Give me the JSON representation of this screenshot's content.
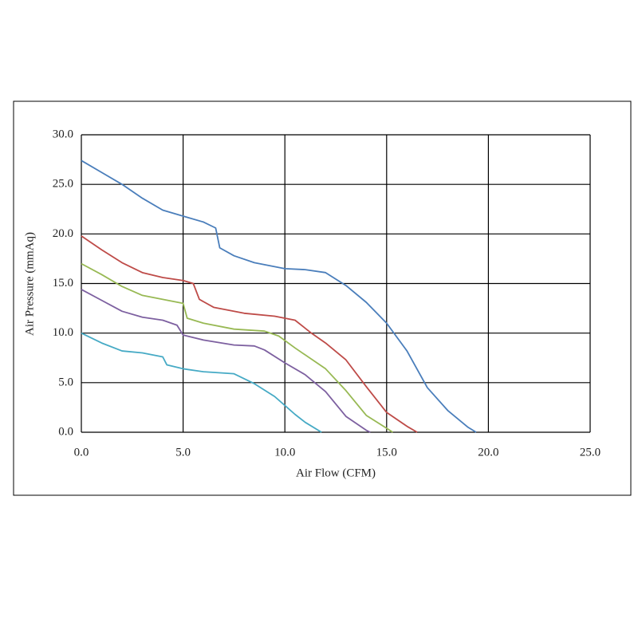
{
  "chart_data": {
    "type": "line",
    "x_label": "Air Flow (CFM)",
    "y_label": "Air Pressure (mmAq)",
    "xlim": [
      0,
      25
    ],
    "ylim": [
      0,
      30
    ],
    "xticks": [
      {
        "value": 0,
        "label": "0.0"
      },
      {
        "value": 5,
        "label": "5.0"
      },
      {
        "value": 10,
        "label": "10.0"
      },
      {
        "value": 15,
        "label": "15.0"
      },
      {
        "value": 20,
        "label": "20.0"
      },
      {
        "value": 25,
        "label": "25.0"
      }
    ],
    "yticks": [
      {
        "value": 0,
        "label": "0.0"
      },
      {
        "value": 5,
        "label": "5.0"
      },
      {
        "value": 10,
        "label": "10.0"
      },
      {
        "value": 15,
        "label": "15.0"
      },
      {
        "value": 20,
        "label": "20.0"
      },
      {
        "value": 25,
        "label": "25.0"
      },
      {
        "value": 30,
        "label": "30.0"
      }
    ],
    "grid": true,
    "series": [
      {
        "color": "#4a7ebb",
        "x": [
          0,
          1,
          2,
          3,
          4,
          5,
          6,
          6.6,
          6.8,
          7.5,
          8.5,
          10,
          11,
          12,
          13,
          14,
          15,
          16,
          17,
          18,
          19,
          19.4
        ],
        "values": [
          27.4,
          26.2,
          25,
          23.6,
          22.4,
          21.8,
          21.2,
          20.6,
          18.6,
          17.8,
          17.1,
          16.5,
          16.4,
          16.1,
          14.8,
          13.1,
          11,
          8.2,
          4.5,
          2.2,
          0.5,
          0
        ]
      },
      {
        "color": "#be4b48",
        "x": [
          0,
          1,
          2,
          3,
          4,
          5,
          5.5,
          5.8,
          6.5,
          8,
          9.5,
          10.5,
          11.3,
          12,
          13,
          14,
          15,
          16,
          16.5
        ],
        "values": [
          19.8,
          18.4,
          17.1,
          16.1,
          15.6,
          15.3,
          15,
          13.4,
          12.6,
          12,
          11.7,
          11.3,
          10,
          9,
          7.3,
          4.6,
          2,
          0.6,
          0
        ]
      },
      {
        "color": "#98b954",
        "x": [
          0,
          1,
          2,
          3,
          4,
          5,
          5.2,
          6,
          7.5,
          9,
          9.7,
          10.5,
          12,
          13,
          14,
          15,
          15.3
        ],
        "values": [
          17,
          15.9,
          14.7,
          13.8,
          13.4,
          13,
          11.5,
          11,
          10.4,
          10.2,
          9.7,
          8.5,
          6.4,
          4.2,
          1.7,
          0.4,
          0
        ]
      },
      {
        "color": "#7d60a0",
        "x": [
          0,
          1,
          2,
          3,
          4,
          4.7,
          5,
          6,
          7.5,
          8.5,
          9,
          10,
          11,
          12,
          13,
          14,
          14.2
        ],
        "values": [
          14.4,
          13.3,
          12.2,
          11.6,
          11.3,
          10.8,
          9.8,
          9.3,
          8.8,
          8.7,
          8.3,
          7,
          5.8,
          4.1,
          1.6,
          0.2,
          0
        ]
      },
      {
        "color": "#46aac5",
        "x": [
          0,
          1,
          2,
          3,
          4,
          4.2,
          5,
          6,
          7.5,
          8.5,
          9.5,
          10.5,
          11,
          11.8
        ],
        "values": [
          10,
          9,
          8.2,
          8,
          7.6,
          6.8,
          6.4,
          6.1,
          5.9,
          4.9,
          3.6,
          1.8,
          1,
          0
        ]
      }
    ]
  }
}
